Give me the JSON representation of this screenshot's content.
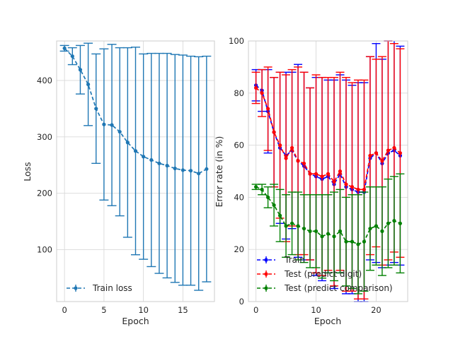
{
  "chart_data": [
    {
      "type": "line",
      "xlabel": "Epoch",
      "ylabel": "Loss",
      "xlim": [
        -1,
        19
      ],
      "ylim": [
        8,
        470
      ],
      "xticks": [
        0,
        5,
        10,
        15
      ],
      "yticks": [
        100,
        200,
        300,
        400
      ],
      "grid": true,
      "legend_placement": "lower-left",
      "series": [
        {
          "name": "Train loss",
          "color": "#1f77b4",
          "style": "dashed with errorbars",
          "x": [
            0,
            1,
            2,
            3,
            4,
            5,
            6,
            7,
            8,
            9,
            10,
            11,
            12,
            13,
            14,
            15,
            16,
            17,
            18
          ],
          "y": [
            457,
            443,
            419,
            393,
            350,
            322,
            321,
            309,
            290,
            275,
            265,
            259,
            253,
            249,
            244,
            241,
            240,
            235,
            243
          ],
          "error": [
            5,
            15,
            43,
            73,
            97,
            134,
            143,
            149,
            168,
            184,
            182,
            189,
            195,
            199,
            202,
            204,
            203,
            207,
            200
          ]
        }
      ]
    },
    {
      "type": "line",
      "xlabel": "Epoch",
      "ylabel": "Error rate (in %)",
      "xlim": [
        -1.25,
        25.25
      ],
      "ylim": [
        0,
        100
      ],
      "xticks": [
        0,
        10,
        20
      ],
      "yticks": [
        0,
        20,
        40,
        60,
        80,
        100
      ],
      "grid": true,
      "legend_placement": "lower-left",
      "series": [
        {
          "name": "Train",
          "color": "#0000ff",
          "x": [
            0,
            1,
            2,
            3,
            4,
            5,
            6,
            7,
            8,
            9,
            10,
            11,
            12,
            13,
            14,
            15,
            16,
            17,
            18,
            19,
            20,
            21,
            22,
            23,
            24
          ],
          "y": [
            83,
            81,
            73,
            65,
            59,
            56,
            58,
            54,
            52,
            49,
            48,
            47,
            48,
            45,
            49,
            44,
            43,
            42,
            42,
            55,
            57,
            53,
            57,
            58,
            56
          ],
          "error": [
            6,
            8,
            16,
            21,
            29,
            32,
            30,
            37,
            36,
            33,
            38,
            39,
            37,
            40,
            38,
            41,
            40,
            42,
            42,
            39,
            42,
            40,
            43,
            43,
            42
          ]
        },
        {
          "name": "Test (predict digit)",
          "color": "#ff0000",
          "x": [
            0,
            1,
            2,
            3,
            4,
            5,
            6,
            7,
            8,
            9,
            10,
            11,
            12,
            13,
            14,
            15,
            16,
            17,
            18,
            19,
            20,
            21,
            22,
            23,
            24
          ],
          "y": [
            82,
            80,
            74,
            65,
            60,
            55,
            59,
            54,
            53,
            49,
            49,
            48,
            49,
            46,
            50,
            45,
            44,
            43,
            43,
            56,
            57,
            54,
            58,
            59,
            57
          ],
          "error": [
            6,
            9,
            16,
            21,
            28,
            32,
            30,
            36,
            35,
            33,
            38,
            38,
            37,
            40,
            38,
            41,
            40,
            42,
            42,
            38,
            36,
            40,
            42,
            40,
            40
          ]
        },
        {
          "name": "Test (predict comparison)",
          "color": "#008000",
          "x": [
            0,
            1,
            2,
            3,
            4,
            5,
            6,
            7,
            8,
            9,
            10,
            11,
            12,
            13,
            14,
            15,
            16,
            17,
            18,
            19,
            20,
            21,
            22,
            23,
            24
          ],
          "y": [
            44,
            43,
            40,
            37,
            33,
            29,
            30,
            29,
            28,
            27,
            27,
            25,
            26,
            25,
            27,
            23,
            23,
            22,
            23,
            28,
            29,
            27,
            30,
            31,
            30
          ],
          "error": [
            1,
            2,
            4,
            8,
            10,
            12,
            12,
            13,
            13,
            14,
            14,
            16,
            15,
            17,
            16,
            17,
            18,
            19,
            19,
            16,
            15,
            17,
            17,
            17,
            19
          ]
        }
      ]
    }
  ]
}
